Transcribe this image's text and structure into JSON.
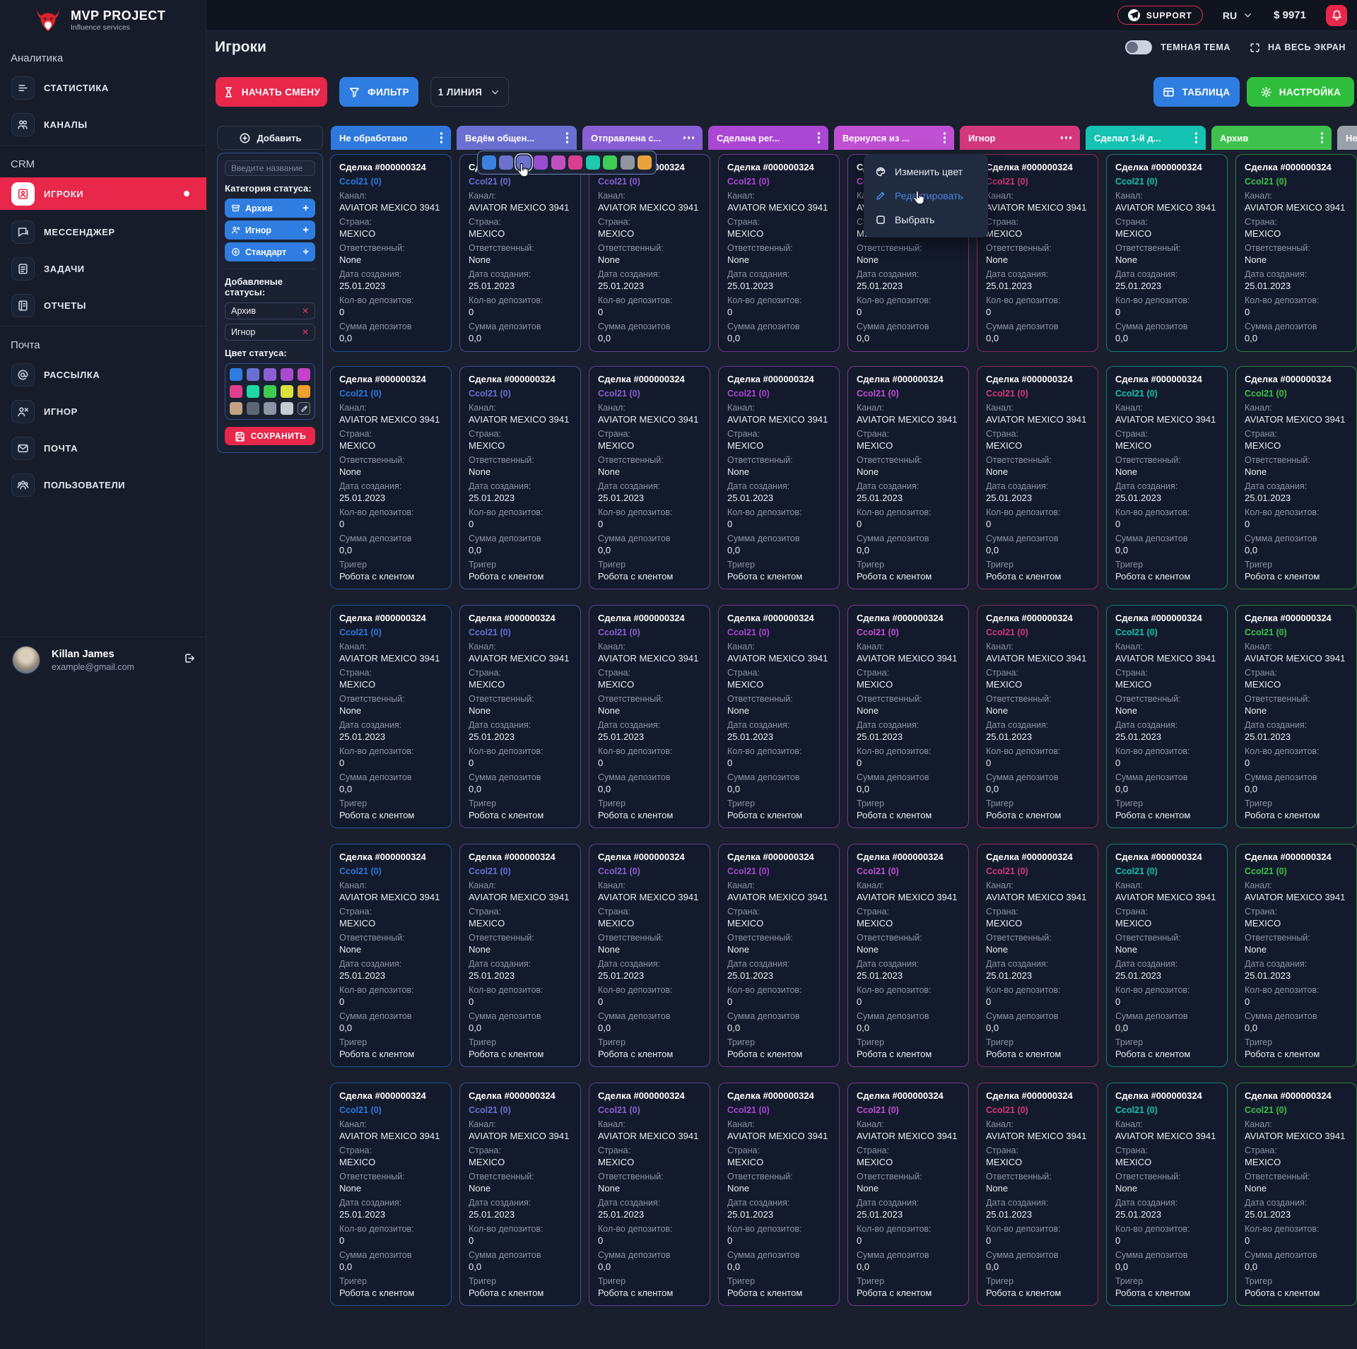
{
  "topbar": {
    "support_label": "SUPPORT",
    "language": "RU",
    "balance": "$ 9971"
  },
  "page_header": {
    "title": "Игроки",
    "theme_toggle_label": "ТЕМНАЯ ТЕМА",
    "fullscreen_label": "НА ВЕСЬ ЭКРАН"
  },
  "toolbar": {
    "start_shift": "НАЧАТЬ СМЕНУ",
    "filter": "ФИЛЬТР",
    "line_select": "1 ЛИНИЯ",
    "table": "ТАБЛИЦА",
    "settings": "НАСТРОЙКА"
  },
  "sidebar": {
    "logo_title": "MVP PROJECT",
    "logo_subtitle": "Influence services",
    "sections": [
      {
        "label": "Аналитика",
        "items": [
          {
            "id": "statistics",
            "label": "СТАТИСТИКА",
            "icon": "stats-icon",
            "active": false
          },
          {
            "id": "channels",
            "label": "КАНАЛЫ",
            "icon": "channels-icon",
            "active": false
          }
        ]
      },
      {
        "label": "CRM",
        "items": [
          {
            "id": "players",
            "label": "ИГРОКИ",
            "icon": "players-icon",
            "active": true
          },
          {
            "id": "messenger",
            "label": "МЕССЕНДЖЕР",
            "icon": "messenger-icon",
            "active": false
          },
          {
            "id": "tasks",
            "label": "ЗАДАЧИ",
            "icon": "tasks-icon",
            "active": false
          },
          {
            "id": "reports",
            "label": "ОТЧЕТЫ",
            "icon": "reports-icon",
            "active": false
          }
        ]
      },
      {
        "label": "Почта",
        "items": [
          {
            "id": "mailing",
            "label": "РАССЫЛКА",
            "icon": "mailing-icon",
            "active": false
          },
          {
            "id": "ignore",
            "label": "ИГНОР",
            "icon": "person-x-icon",
            "active": false
          },
          {
            "id": "mail",
            "label": "ПОЧТА",
            "icon": "mail-icon",
            "active": false
          },
          {
            "id": "users",
            "label": "ПОЛЬЗОВАТЕЛИ",
            "icon": "users-icon",
            "active": false
          }
        ]
      }
    ],
    "user": {
      "name": "Killan James",
      "email": "example@gmail.com"
    }
  },
  "status_panel": {
    "add_button": "Добавить",
    "name_placeholder": "Введите название",
    "category_label": "Категория статуса:",
    "categories": [
      {
        "label": "Архив",
        "icon": "archive-icon"
      },
      {
        "label": "Игнор",
        "icon": "person-x-icon"
      },
      {
        "label": "Стандарт",
        "icon": "plus-circle-icon"
      }
    ],
    "added_label": "Добавленые статусы:",
    "added_statuses": [
      "Архив",
      "Игнор"
    ],
    "color_label": "Цвет статуса:",
    "palette": [
      "#2e7ce0",
      "#6a6fd1",
      "#8a5fd6",
      "#a94ad0",
      "#c443c9",
      "#e03f8e",
      "#1fd6a6",
      "#3ecc51",
      "#d9e23c",
      "#f0a02e",
      "#c3a284",
      "#5f6673",
      "#8b95a3",
      "#c6ccd4"
    ],
    "save_button": "СОХРАНИТЬ"
  },
  "board": {
    "columns": [
      {
        "title": "Не обработано",
        "color": "#2e78de",
        "menu": "vertical"
      },
      {
        "title": "Ведём общен...",
        "color": "#6a6fd1",
        "menu": "vertical"
      },
      {
        "title": "Отправлена с...",
        "color": "#8a5fd6",
        "menu": "horizontal"
      },
      {
        "title": "Сделана рег...",
        "color": "#aa46d4",
        "menu": "vertical"
      },
      {
        "title": "Вернулся из ...",
        "color": "#bf4fd3",
        "menu": "vertical"
      },
      {
        "title": "Игнор",
        "color": "#d5377d",
        "menu": "horizontal"
      },
      {
        "title": "Сделал 1-й д...",
        "color": "#16c2b2",
        "menu": "vertical"
      },
      {
        "title": "Архив",
        "color": "#3ec24d",
        "menu": "vertical"
      },
      {
        "title": "Нет",
        "color": "#9aa1aa",
        "menu": "vertical"
      }
    ],
    "rows": 5,
    "card": {
      "title": "Сделка #000000324",
      "link": "Ccol21 (0)",
      "fields": [
        {
          "label": "Канал:",
          "value": "AVIATOR MEXICO 3941"
        },
        {
          "label": "Страна:",
          "value": "MEXICO"
        },
        {
          "label": "Ответственный:",
          "value": "None"
        },
        {
          "label": "Дата создания:",
          "value": "25.01.2023"
        },
        {
          "label": "Кол-во депозитов:",
          "value": "0"
        },
        {
          "label": "Сумма депозитов",
          "value": "0,0"
        }
      ],
      "trigger": {
        "label": "Тригер",
        "value": "Робота с клентом"
      }
    }
  },
  "color_popover": {
    "swatches": [
      "#3b82e0",
      "#6e72cf",
      "#6e72cf",
      "#9a4cd0",
      "#c050c0",
      "#d83f8c",
      "#1ec9ac",
      "#3ecc55",
      "#8e959e",
      "#e8a33d"
    ],
    "selected_index": 2
  },
  "context_menu": {
    "items": [
      {
        "label": "Изменить цвет",
        "icon": "palette-icon",
        "active": false
      },
      {
        "label": "Редактировать",
        "icon": "pencil-icon",
        "active": true
      },
      {
        "label": "Выбрать",
        "icon": "checkbox-icon",
        "active": false
      }
    ]
  },
  "colors": {
    "accent_red": "#e8274b",
    "accent_blue": "#2f7de1",
    "accent_green": "#2fbe3c",
    "background": "#191f2d",
    "sidebar": "#161c2a",
    "card_bg": "#131a2b"
  }
}
